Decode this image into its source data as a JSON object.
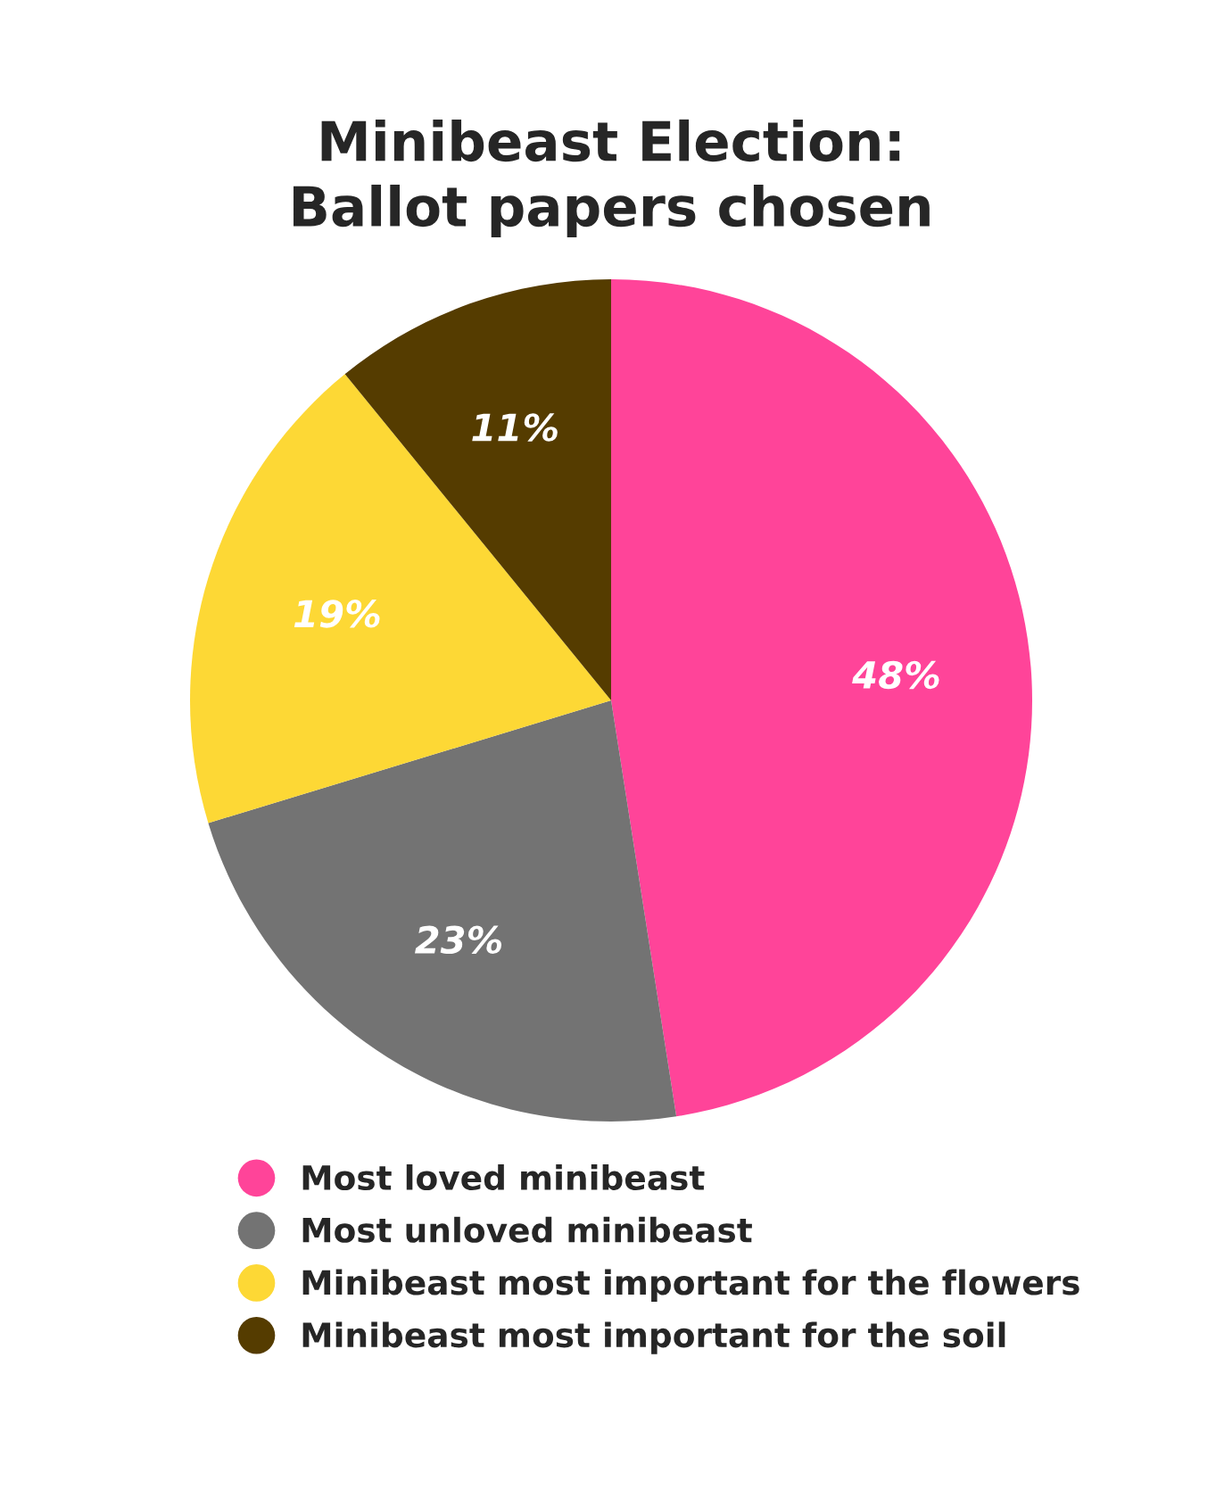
{
  "chart_data": {
    "type": "pie",
    "title": "Minibeast Election:\nBallot papers chosen",
    "categories": [
      "Most loved minibeast",
      "Most unloved minibeast",
      "Minibeast most important for the flowers",
      "Minibeast most important for the soil"
    ],
    "values": [
      48,
      23,
      19,
      11
    ],
    "value_labels": [
      "48%",
      "23%",
      "19%",
      "11%"
    ],
    "colors": [
      "#ff4499",
      "#737373",
      "#fdd835",
      "#553c00"
    ],
    "legend": "bottom"
  }
}
